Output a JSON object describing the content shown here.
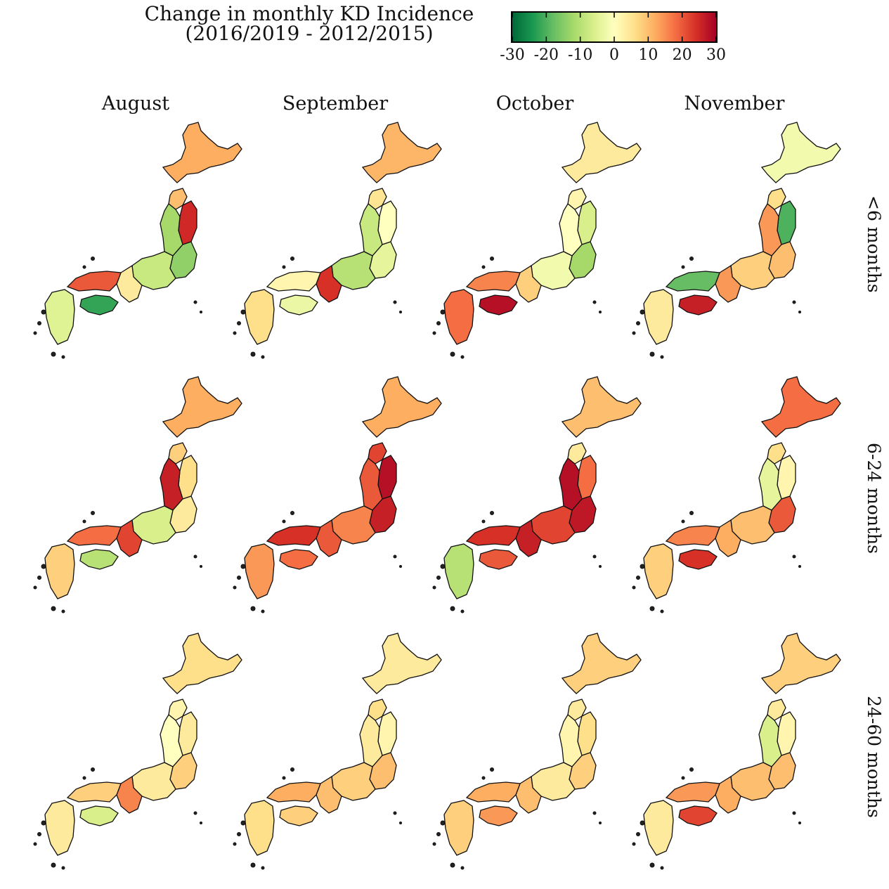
{
  "title": {
    "line1": "Change in monthly KD Incidence",
    "line2": "(2016/2019 - 2012/2015)"
  },
  "colorbar": {
    "ticks": [
      "-30",
      "-20",
      "-10",
      "0",
      "10",
      "20",
      "30"
    ],
    "range": [
      -30,
      30
    ],
    "colors": [
      "#006837",
      "#1a9850",
      "#66bd63",
      "#a6d96a",
      "#d9ef8b",
      "#ffffbf",
      "#fee08b",
      "#fdae61",
      "#f46d43",
      "#d73027",
      "#a50026"
    ]
  },
  "columns": [
    "August",
    "September",
    "October",
    "November"
  ],
  "rows": [
    "<6 months",
    "6-24 months",
    "24-60 months"
  ],
  "chart_data": {
    "type": "heatmap",
    "regions": [
      "Hokkaido",
      "Tohoku north",
      "Tohoku east",
      "Tohoku west",
      "Kanto",
      "Chubu",
      "Kansai",
      "Chugoku",
      "Shikoku",
      "Kyushu"
    ],
    "values": [
      [
        [
          12,
          10,
          25,
          -12,
          -14,
          -8,
          4,
          20,
          -22,
          -5
        ],
        [
          11,
          5,
          0,
          -8,
          -4,
          -10,
          24,
          2,
          -3,
          6
        ],
        [
          4,
          2,
          -6,
          0,
          -12,
          -2,
          8,
          16,
          28,
          18
        ],
        [
          -2,
          6,
          -20,
          14,
          10,
          8,
          14,
          -18,
          26,
          4
        ]
      ],
      [
        [
          12,
          8,
          6,
          26,
          4,
          -6,
          22,
          18,
          -10,
          8
        ],
        [
          12,
          22,
          28,
          20,
          26,
          16,
          20,
          24,
          18,
          14
        ],
        [
          10,
          4,
          18,
          28,
          27,
          22,
          26,
          24,
          20,
          -10
        ],
        [
          18,
          6,
          2,
          -4,
          20,
          10,
          12,
          16,
          24,
          8
        ]
      ],
      [
        [
          6,
          2,
          4,
          0,
          8,
          4,
          16,
          8,
          -6,
          4
        ],
        [
          4,
          6,
          2,
          4,
          10,
          8,
          10,
          12,
          8,
          6
        ],
        [
          8,
          4,
          6,
          2,
          8,
          4,
          10,
          12,
          14,
          8
        ],
        [
          8,
          4,
          2,
          -6,
          10,
          10,
          12,
          14,
          22,
          4
        ]
      ]
    ]
  }
}
